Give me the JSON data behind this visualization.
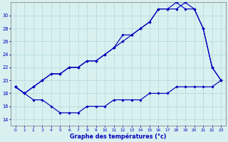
{
  "line_upper1": [
    19,
    18,
    19,
    20,
    21,
    21,
    22,
    22,
    23,
    23,
    24,
    25,
    27,
    27,
    28,
    29,
    31,
    31,
    31,
    32,
    31,
    28,
    22,
    20
  ],
  "line_upper2": [
    19,
    18,
    19,
    20,
    21,
    21,
    22,
    22,
    23,
    23,
    24,
    25,
    26,
    27,
    28,
    29,
    31,
    31,
    32,
    31,
    31,
    28,
    22,
    20
  ],
  "line_lower": [
    19,
    18,
    17,
    17,
    16,
    15,
    15,
    15,
    16,
    16,
    16,
    17,
    17,
    17,
    17,
    18,
    18,
    18,
    19,
    19,
    19,
    19,
    19,
    20
  ],
  "x": [
    0,
    1,
    2,
    3,
    4,
    5,
    6,
    7,
    8,
    9,
    10,
    11,
    12,
    13,
    14,
    15,
    16,
    17,
    18,
    19,
    20,
    21,
    22,
    23
  ],
  "xlabel": "Graphe des températures (°c)",
  "ylim": [
    13,
    32
  ],
  "xlim": [
    -0.5,
    23.5
  ],
  "yticks": [
    14,
    16,
    18,
    20,
    22,
    24,
    26,
    28,
    30
  ],
  "xticks": [
    0,
    1,
    2,
    3,
    4,
    5,
    6,
    7,
    8,
    9,
    10,
    11,
    12,
    13,
    14,
    15,
    16,
    17,
    18,
    19,
    20,
    21,
    22,
    23
  ],
  "bg_color": "#d8f0f0",
  "line_color": "#0000bb",
  "grid_color": "#b0d8d8"
}
